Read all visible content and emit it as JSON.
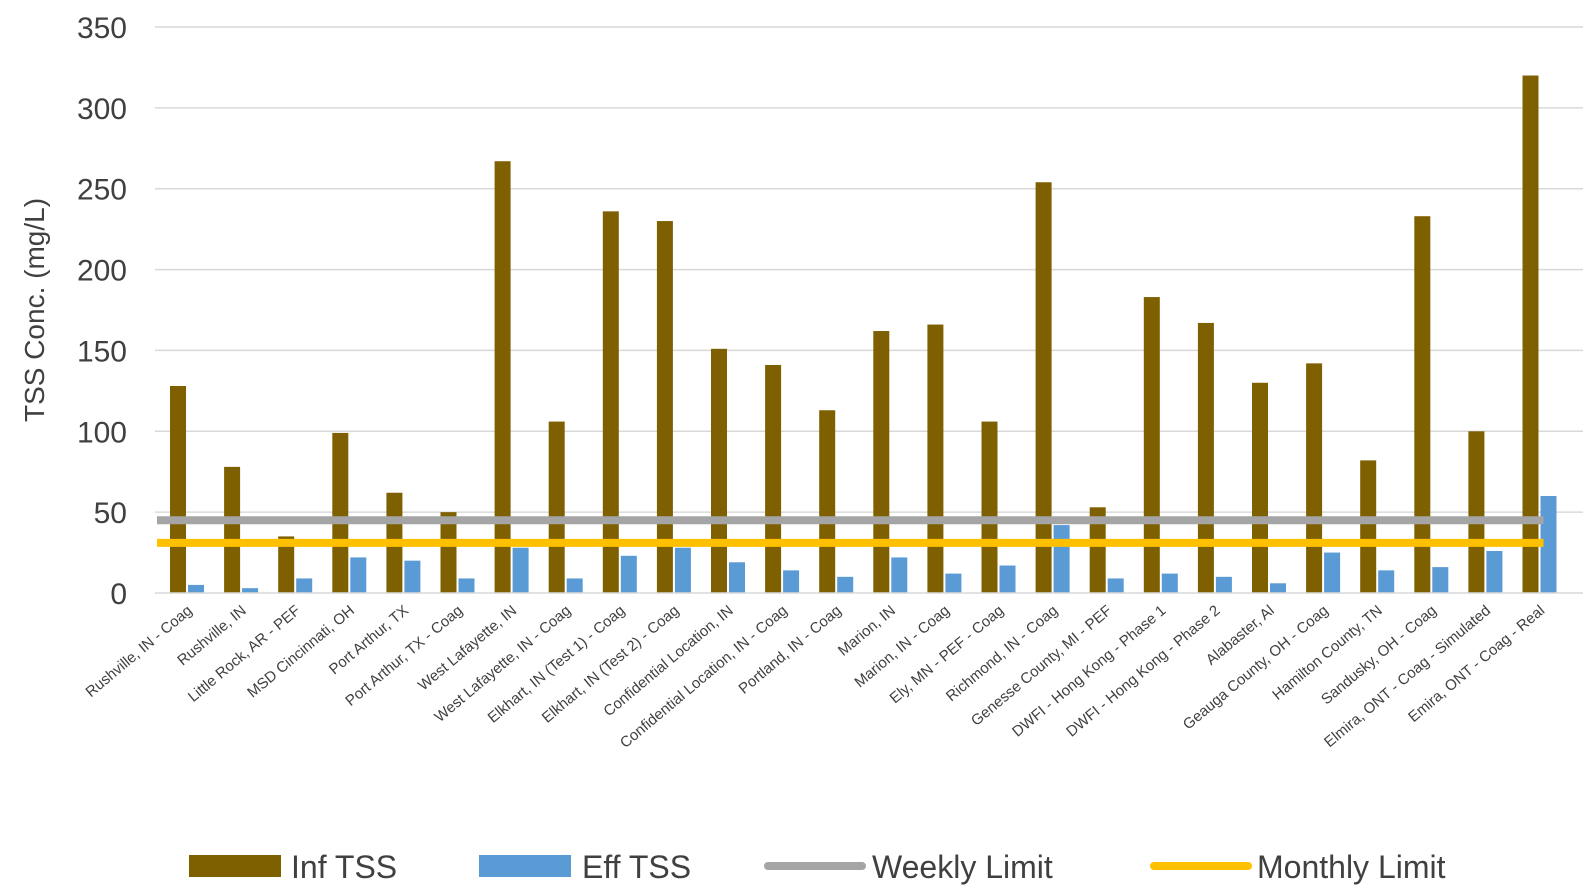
{
  "chart_data": {
    "type": "bar",
    "title": "",
    "xlabel": "",
    "ylabel": "TSS Conc. (mg/L)",
    "ylim": [
      0,
      350
    ],
    "yticks": [
      0,
      50,
      100,
      150,
      200,
      250,
      300,
      350
    ],
    "grid": true,
    "legend_position": "bottom",
    "categories": [
      "Rushville, IN - Coag",
      "Rushville, IN",
      "Little Rock, AR - PEF",
      "MSD Cincinnati, OH",
      "Port Arthur, TX",
      "Port Arthur, TX - Coag",
      "West Lafayette, IN",
      "West Lafayette, IN - Coag",
      "Elkhart, IN (Test 1) - Coag",
      "Elkhart, IN (Test 2) - Coag",
      "Confidential Location, IN",
      "Confidential Location, IN - Coag",
      "Portland, IN - Coag",
      "Marion, IN",
      "Marion, IN - Coag",
      "Ely, MN - PEF - Coag",
      "Richmond, IN - Coag",
      "Genesse County, MI - PEF",
      "DWFI - Hong Kong - Phase 1",
      "DWFI - Hong Kong - Phase 2",
      "Alabaster, Al",
      "Geauga County, OH - Coag",
      "Hamilton County, TN",
      "Sandusky, OH - Coag",
      "Elmira, ONT - Coag - Simulated",
      "Emira, ONT - Coag - Real"
    ],
    "series": [
      {
        "name": "Inf TSS",
        "kind": "bar",
        "color": "#7f6000",
        "values": [
          128,
          78,
          35,
          99,
          62,
          50,
          267,
          106,
          236,
          230,
          151,
          141,
          113,
          162,
          166,
          106,
          254,
          53,
          183,
          167,
          130,
          142,
          82,
          233,
          100,
          320
        ]
      },
      {
        "name": "Eff TSS",
        "kind": "bar",
        "color": "#5b9bd5",
        "values": [
          5,
          3,
          9,
          22,
          20,
          9,
          28,
          9,
          23,
          28,
          19,
          14,
          10,
          22,
          12,
          17,
          42,
          9,
          12,
          10,
          6,
          25,
          14,
          16,
          26,
          60
        ]
      },
      {
        "name": "Weekly Limit",
        "kind": "line",
        "color": "#a5a5a5",
        "value": 45
      },
      {
        "name": "Monthly Limit",
        "kind": "line",
        "color": "#ffc000",
        "value": 31
      }
    ]
  }
}
